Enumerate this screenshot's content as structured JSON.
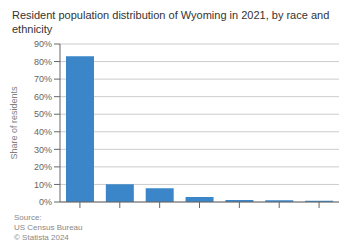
{
  "chart_data": {
    "type": "bar",
    "title": "Resident population distribution of Wyoming in 2021, by race and ethnicity",
    "categories": [
      null,
      null,
      null,
      null,
      null,
      null,
      null
    ],
    "values": [
      83.0,
      10.1,
      7.8,
      2.9,
      1.2,
      1.0,
      0.7
    ],
    "color": "#3a86c8",
    "ylim": [
      0,
      90
    ],
    "yticks": [
      {
        "value": 0,
        "label": "0%"
      },
      {
        "value": 10,
        "label": "10%"
      },
      {
        "value": 20,
        "label": "20%"
      },
      {
        "value": 30,
        "label": "30%"
      },
      {
        "value": 40,
        "label": "40%"
      },
      {
        "value": 50,
        "label": "50%"
      },
      {
        "value": 60,
        "label": "60%"
      },
      {
        "value": 70,
        "label": "70%"
      },
      {
        "value": 80,
        "label": "80%"
      },
      {
        "value": 90,
        "label": "90%"
      }
    ],
    "ylabel": "Share of residents",
    "grid": true,
    "annotations": [
      "Source:\nUS Census Bureau\n© Statista 2024"
    ]
  }
}
